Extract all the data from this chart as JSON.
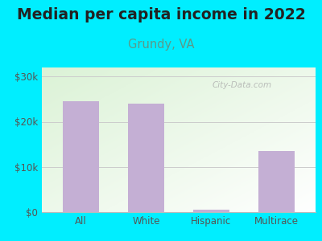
{
  "title": "Median per capita income in 2022",
  "subtitle": "Grundy, VA",
  "categories": [
    "All",
    "White",
    "Hispanic",
    "Multirace"
  ],
  "values": [
    24500,
    24000,
    500,
    13500
  ],
  "bar_color": "#c4afd4",
  "title_fontsize": 13.5,
  "subtitle_fontsize": 10.5,
  "subtitle_color": "#5a9a8a",
  "title_color": "#222222",
  "ylim": [
    0,
    32000
  ],
  "yticks": [
    0,
    10000,
    20000,
    30000
  ],
  "ytick_labels": [
    "$0",
    "$10k",
    "$20k",
    "$30k"
  ],
  "background_outer": "#00eeff",
  "watermark": "City-Data.com",
  "tick_color": "#555555",
  "grid_color": "#cccccc",
  "bar_width": 0.55
}
